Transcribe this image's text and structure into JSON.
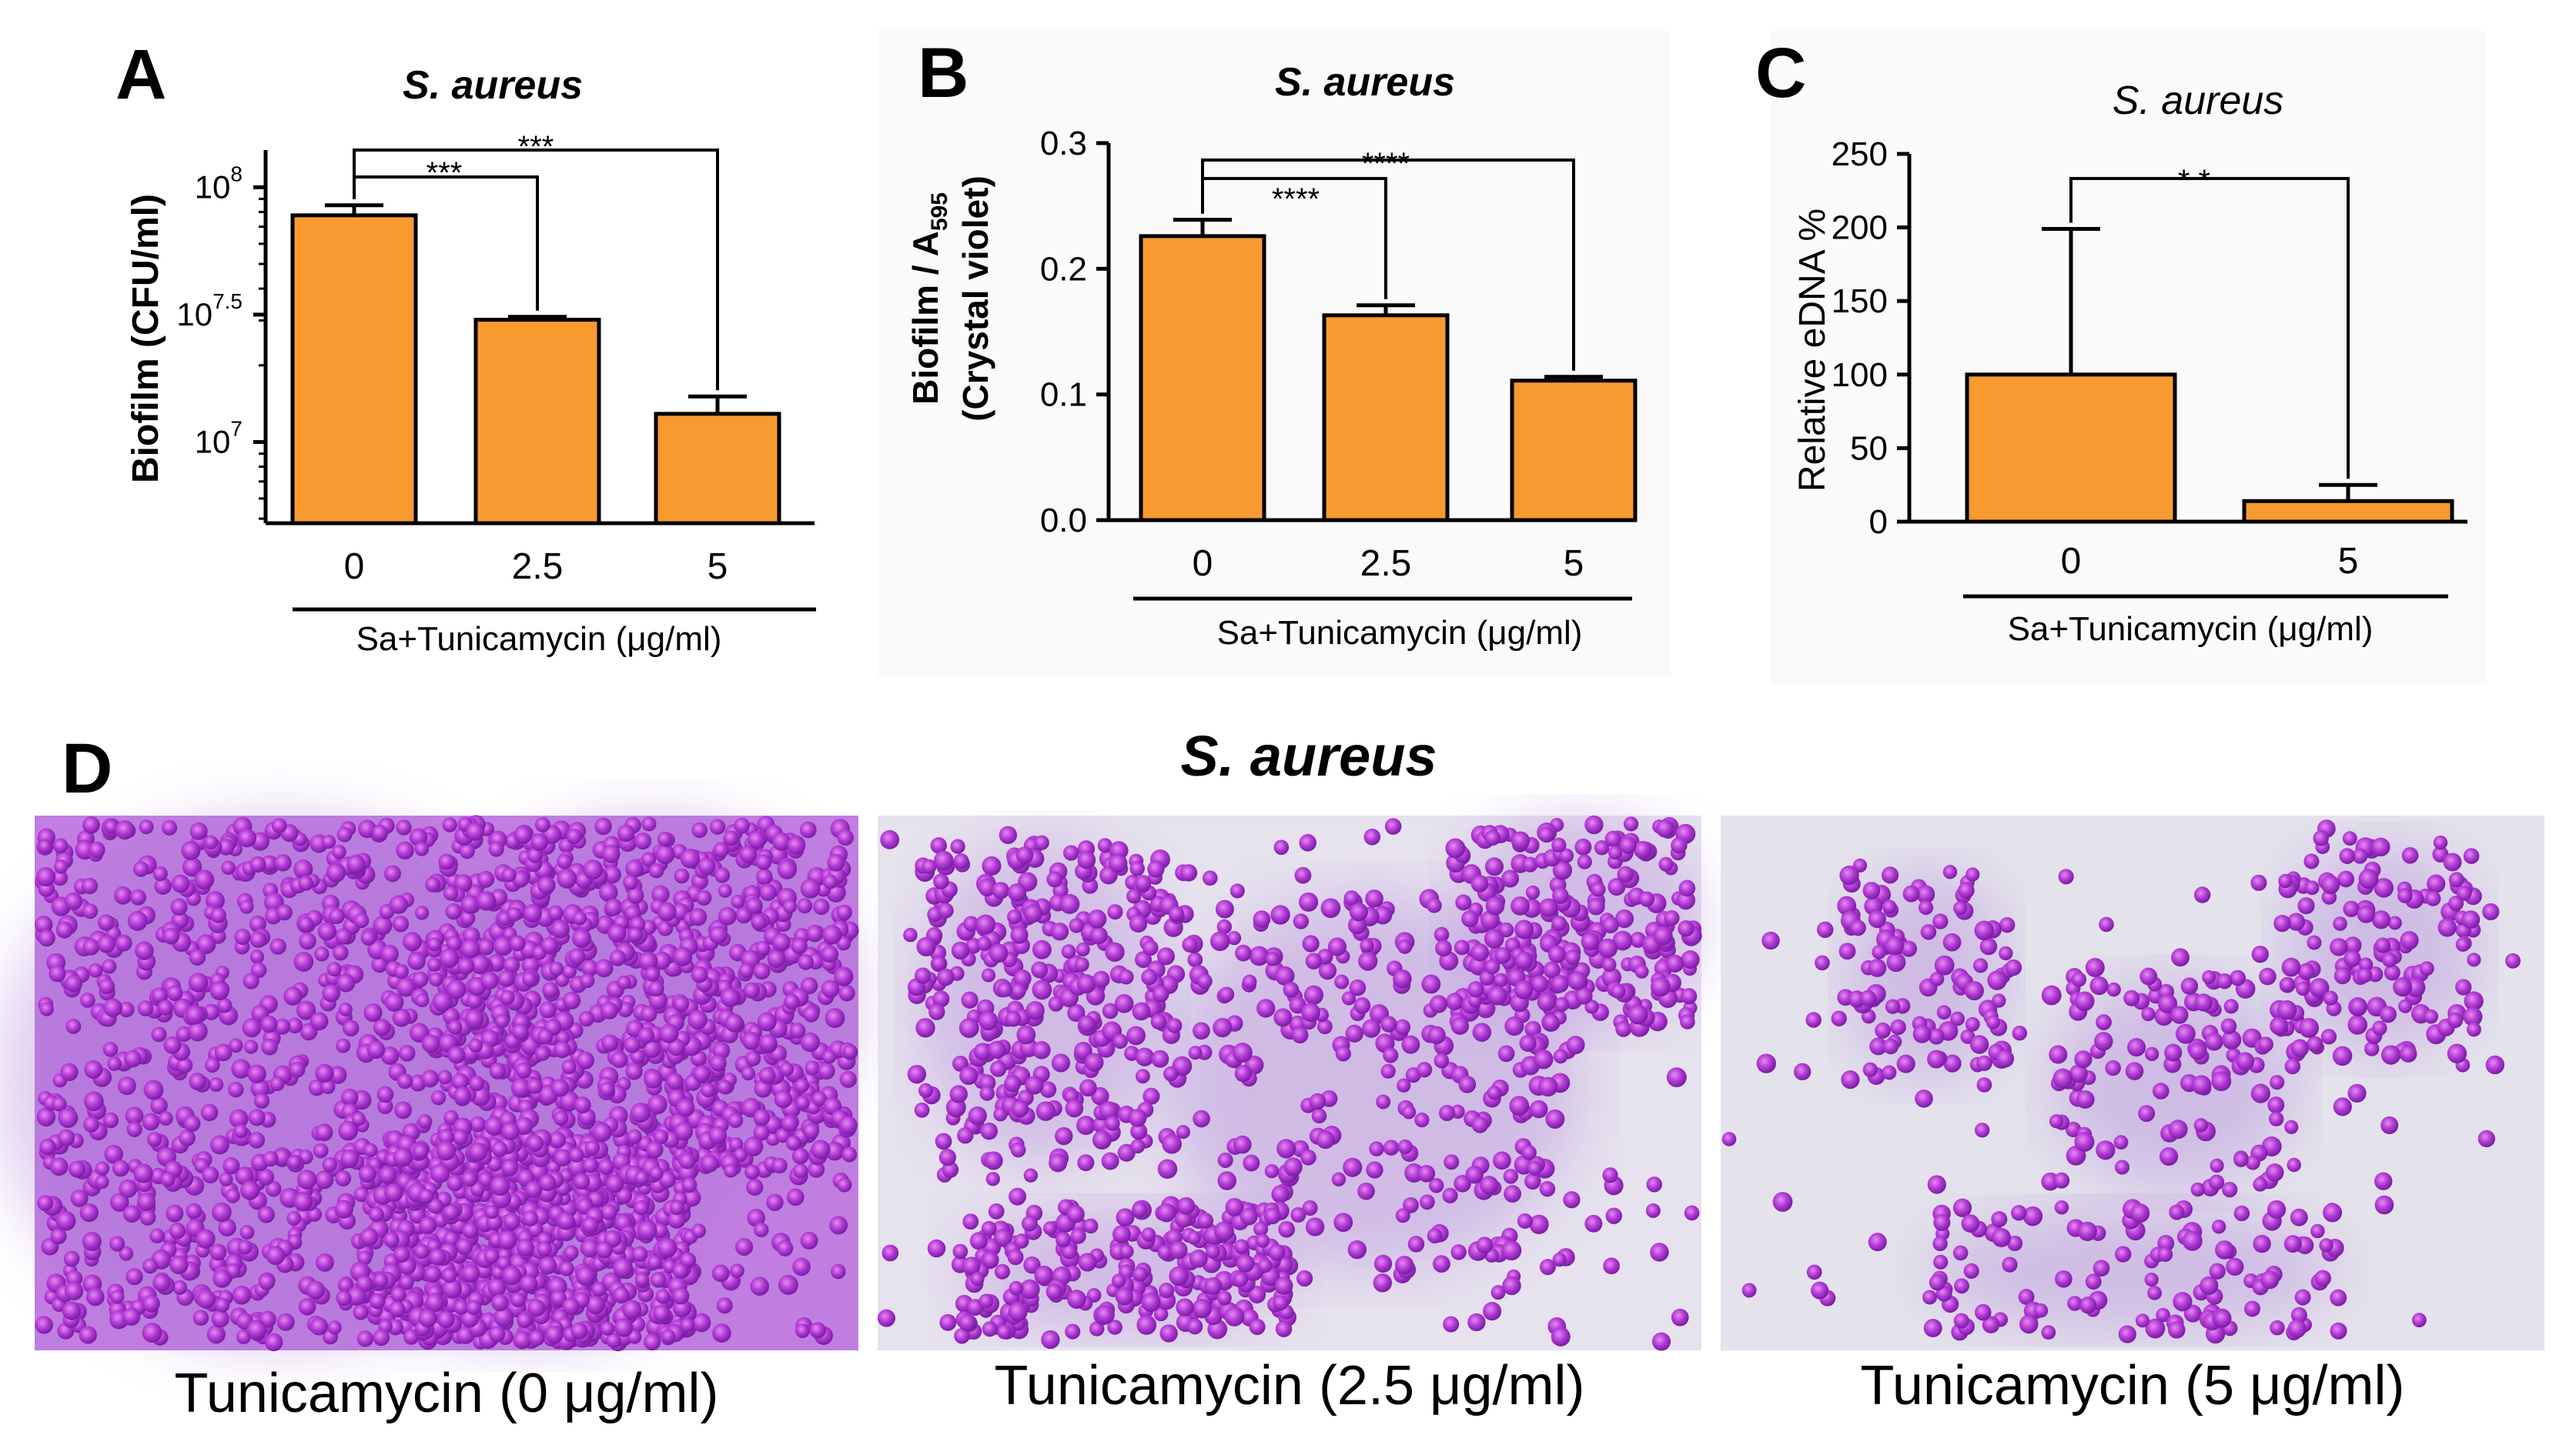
{
  "panels": {
    "A": {
      "label": "A",
      "title": "S. aureus",
      "ylabel": "Biofilm (CFU/ml)",
      "xgroup": "Sa+Tunicamycin (μg/ml)"
    },
    "B": {
      "label": "B",
      "title": "S. aureus",
      "ylabel_line1": "Biofilm / A",
      "ylabel_sub": "595",
      "ylabel_line2": "(Crystal violet)",
      "xgroup": "Sa+Tunicamycin (μg/ml)"
    },
    "C": {
      "label": "C",
      "title": "S. aureus",
      "ylabel": "Relative eDNA %",
      "xgroup": "Sa+Tunicamycin (μg/ml)"
    },
    "D": {
      "label": "D",
      "title": "S. aureus",
      "captions": [
        "Tunicamycin (0 μg/ml)",
        "Tunicamycin (2.5 μg/ml)",
        "Tunicamycin (5 μg/ml)"
      ]
    }
  },
  "chart_data": [
    {
      "type": "bar",
      "title": "S. aureus",
      "ylabel": "Biofilm (CFU/ml)",
      "xlabel": "Sa+Tunicamycin (μg/ml)",
      "categories": [
        "0",
        "2.5",
        "5"
      ],
      "values": [
        77600000,
        30200000,
        12900000
      ],
      "errors": [
        7400000,
        800000,
        2200000
      ],
      "yscale": "log",
      "ylim": [
        4800000,
        140000000
      ],
      "yticks": [
        {
          "value": 10000000,
          "base": "10",
          "exp": "7"
        },
        {
          "value": 31622777,
          "base": "10",
          "exp": "7.5"
        },
        {
          "value": 100000000,
          "base": "10",
          "exp": "8"
        }
      ],
      "bar_color": "#F79A30",
      "significance": [
        {
          "from": 0,
          "to": 1,
          "label": "***"
        },
        {
          "from": 0,
          "to": 2,
          "label": "***"
        }
      ]
    },
    {
      "type": "bar",
      "title": "S. aureus",
      "ylabel": "Biofilm / A595 (Crystal violet)",
      "xlabel": "Sa+Tunicamycin (μg/ml)",
      "categories": [
        "0",
        "2.5",
        "5"
      ],
      "values": [
        0.226,
        0.163,
        0.111
      ],
      "errors": [
        0.013,
        0.008,
        0.003
      ],
      "ylim": [
        0,
        0.3
      ],
      "yticks": [
        {
          "value": 0,
          "label": "0.0"
        },
        {
          "value": 0.1,
          "label": "0.1"
        },
        {
          "value": 0.2,
          "label": "0.2"
        },
        {
          "value": 0.3,
          "label": "0.3"
        }
      ],
      "bar_color": "#F79A30",
      "significance": [
        {
          "from": 0,
          "to": 1,
          "label": "****"
        },
        {
          "from": 0,
          "to": 2,
          "label": "****"
        }
      ]
    },
    {
      "type": "bar",
      "title": "S. aureus",
      "ylabel": "Relative eDNA %",
      "xlabel": "Sa+Tunicamycin (μg/ml)",
      "categories": [
        "0",
        "5"
      ],
      "values": [
        100,
        14
      ],
      "errors": [
        99,
        11
      ],
      "ylim": [
        0,
        250
      ],
      "yticks": [
        {
          "value": 0,
          "label": "0"
        },
        {
          "value": 50,
          "label": "50"
        },
        {
          "value": 100,
          "label": "100"
        },
        {
          "value": 150,
          "label": "150"
        },
        {
          "value": 200,
          "label": "200"
        },
        {
          "value": 250,
          "label": "250"
        }
      ],
      "bar_color": "#F79A30",
      "significance": [
        {
          "from": 0,
          "to": 1,
          "label": "* *"
        }
      ]
    }
  ]
}
